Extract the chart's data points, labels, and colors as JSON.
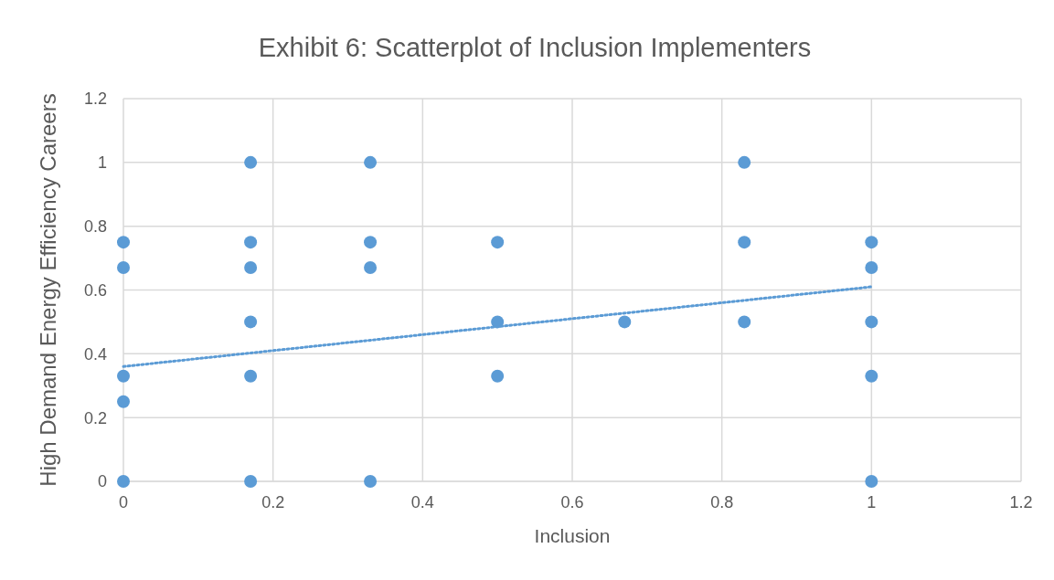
{
  "chart_data": {
    "type": "scatter",
    "title": "Exhibit 6: Scatterplot of Inclusion Implementers",
    "xlabel": "Inclusion",
    "ylabel": "High Demand Energy Efficiency Careers",
    "xlim": [
      0,
      1.2
    ],
    "xticks": [
      0,
      0.2,
      0.4,
      0.6,
      0.8,
      1,
      1.2
    ],
    "ylim": [
      0,
      1.2
    ],
    "yticks": [
      0,
      0.2,
      0.4,
      0.6,
      0.8,
      1,
      1.2
    ],
    "grid": true,
    "marker": "circle",
    "series": [
      {
        "color": "#5b9bd5",
        "x": [
          0,
          0,
          0,
          0,
          0,
          0.17,
          0.17,
          0.17,
          0.17,
          0.17,
          0.17,
          0.33,
          0.33,
          0.33,
          0.33,
          0.5,
          0.5,
          0.5,
          0.67,
          0.83,
          0.83,
          0.83,
          1,
          1,
          1,
          1,
          1
        ],
        "values": [
          0.75,
          0.67,
          0.33,
          0.25,
          0,
          1,
          0.75,
          0.67,
          0.5,
          0.33,
          0,
          1,
          0.75,
          0.67,
          0,
          0.75,
          0.5,
          0.33,
          0.5,
          1,
          0.75,
          0.5,
          0.75,
          0.67,
          0.5,
          0.33,
          0
        ]
      },
      {
        "type": "line",
        "color": "#5b9bd5",
        "marker": "none",
        "line_style": "dotted",
        "x": [
          0,
          1
        ],
        "values": [
          0.36,
          0.61
        ]
      }
    ]
  }
}
